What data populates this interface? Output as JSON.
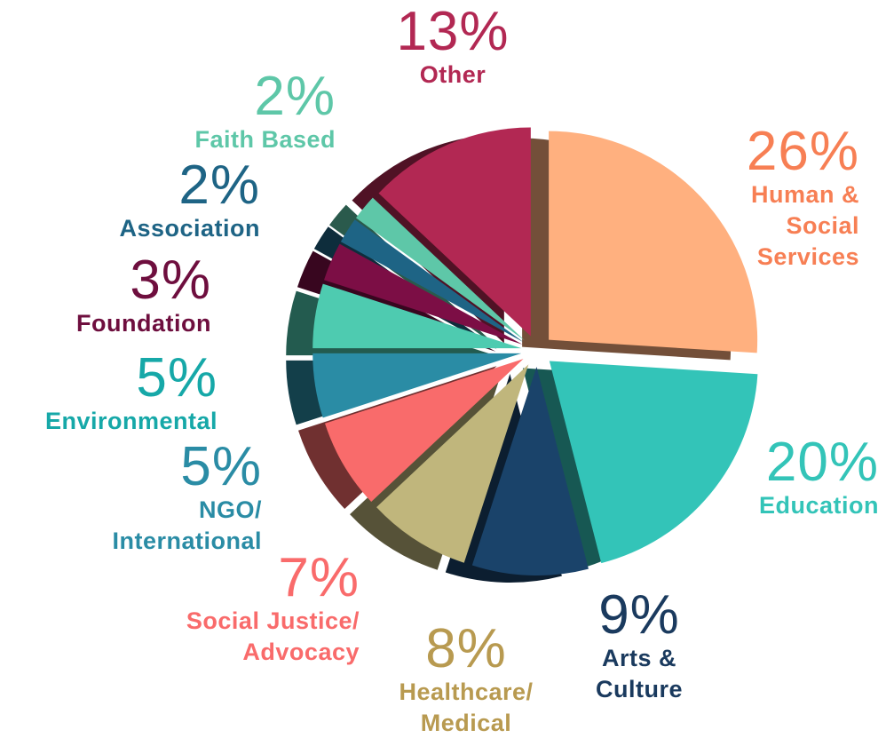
{
  "chart_data": {
    "type": "pie",
    "categories": [
      "Human & Social Services",
      "Education",
      "Arts & Culture",
      "Healthcare/ Medical",
      "Social Justice/ Advocacy",
      "NGO/ International",
      "Environmental",
      "Foundation",
      "Association",
      "Faith Based",
      "Other"
    ],
    "values": [
      26,
      20,
      9,
      8,
      7,
      5,
      5,
      3,
      2,
      2,
      13
    ],
    "value_labels": [
      "26%",
      "20%",
      "9%",
      "8%",
      "7%",
      "5%",
      "5%",
      "3%",
      "2%",
      "2%",
      "13%"
    ],
    "colors": [
      "#ffb07f",
      "#33c4b8",
      "#1a436a",
      "#c0b67c",
      "#f96b6b",
      "#2a8ca5",
      "#4ecbb0",
      "#7c0e45",
      "#1e6485",
      "#5ec7a8",
      "#b22853"
    ],
    "label_colors": [
      "#f77f54",
      "#33c4b8",
      "#1a3a5e",
      "#b89a50",
      "#f96b6b",
      "#2a8ca5",
      "#16a8a8",
      "#6e0e3e",
      "#1e6485",
      "#5ec7a8",
      "#b22853"
    ]
  }
}
